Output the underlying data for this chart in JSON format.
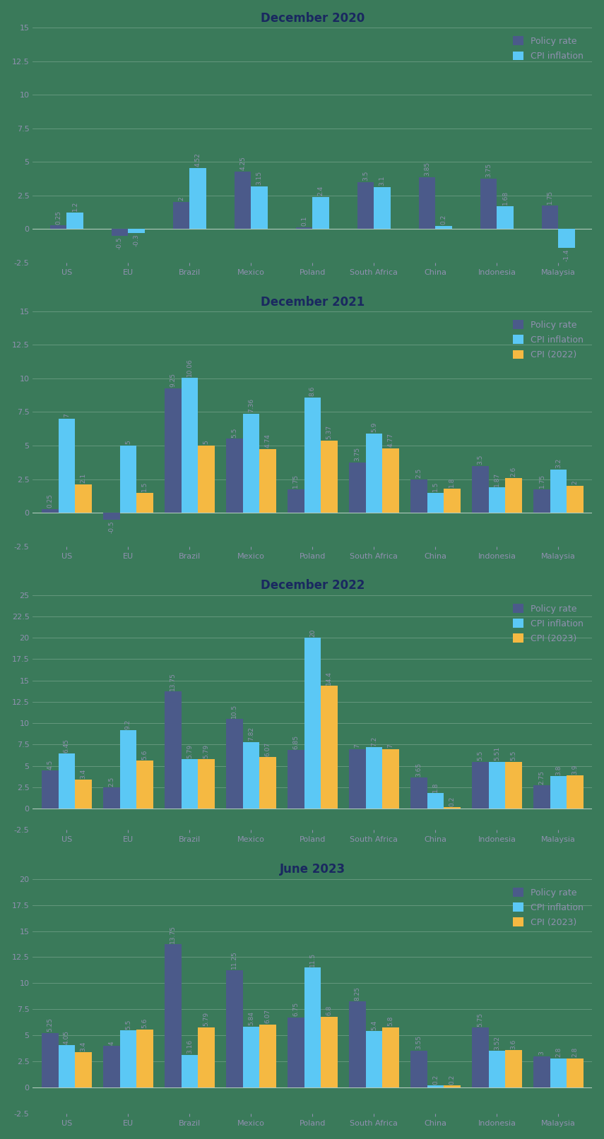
{
  "charts": [
    {
      "title": "December 2020",
      "categories": [
        "US",
        "EU",
        "Brazil",
        "Mexico",
        "Poland",
        "South Africa",
        "China",
        "Indonesia",
        "Malaysia"
      ],
      "series": [
        {
          "name": "Policy rate",
          "color": "#4b5a8a",
          "values": [
            0.25,
            -0.5,
            2.0,
            4.25,
            0.1,
            3.5,
            3.85,
            3.75,
            1.75
          ]
        },
        {
          "name": "CPI inflation",
          "color": "#5bc8f5",
          "values": [
            1.2,
            -0.3,
            4.52,
            3.15,
            2.4,
            3.1,
            0.2,
            1.68,
            -1.4
          ]
        }
      ],
      "ylim": [
        -2.5,
        15
      ],
      "yticks": [
        -2.5,
        0,
        2.5,
        5,
        7.5,
        10,
        12.5,
        15
      ],
      "n_series": 2
    },
    {
      "title": "December 2021",
      "categories": [
        "US",
        "EU",
        "Brazil",
        "Mexico",
        "Poland",
        "South Africa",
        "China",
        "Indonesia",
        "Malaysia"
      ],
      "series": [
        {
          "name": "Policy rate",
          "color": "#4b5a8a",
          "values": [
            0.25,
            -0.5,
            9.25,
            5.5,
            1.75,
            3.75,
            2.5,
            3.5,
            1.75
          ]
        },
        {
          "name": "CPI inflation",
          "color": "#5bc8f5",
          "values": [
            7.0,
            5.0,
            10.06,
            7.36,
            8.6,
            5.9,
            1.5,
            1.87,
            3.2
          ]
        },
        {
          "name": "CPI (2022)",
          "color": "#f5b942",
          "values": [
            2.1,
            1.5,
            5.0,
            4.74,
            5.37,
            4.77,
            1.8,
            2.6,
            2.0
          ]
        }
      ],
      "ylim": [
        -2.5,
        15
      ],
      "yticks": [
        -2.5,
        0,
        2.5,
        5,
        7.5,
        10,
        12.5,
        15
      ],
      "n_series": 3
    },
    {
      "title": "December 2022",
      "categories": [
        "US",
        "EU",
        "Brazil",
        "Mexico",
        "Poland",
        "South Africa",
        "China",
        "Indonesia",
        "Malaysia"
      ],
      "series": [
        {
          "name": "Policy rate",
          "color": "#4b5a8a",
          "values": [
            4.5,
            2.5,
            13.75,
            10.5,
            6.85,
            7.0,
            3.65,
            5.5,
            2.75
          ]
        },
        {
          "name": "CPI inflation",
          "color": "#5bc8f5",
          "values": [
            6.45,
            9.2,
            5.79,
            7.82,
            20.0,
            7.2,
            1.8,
            5.51,
            3.8
          ]
        },
        {
          "name": "CPI (2023)",
          "color": "#f5b942",
          "values": [
            3.4,
            5.6,
            5.79,
            6.07,
            14.4,
            7.0,
            0.2,
            5.5,
            3.9
          ]
        }
      ],
      "ylim": [
        -2.5,
        25
      ],
      "yticks": [
        -2.5,
        0,
        2.5,
        5,
        7.5,
        10,
        12.5,
        15,
        17.5,
        20,
        22.5,
        25
      ],
      "n_series": 3
    },
    {
      "title": "June 2023",
      "categories": [
        "US",
        "EU",
        "Brazil",
        "Mexico",
        "Poland",
        "South Africa",
        "China",
        "Indonesia",
        "Malaysia"
      ],
      "series": [
        {
          "name": "Policy rate",
          "color": "#4b5a8a",
          "values": [
            5.25,
            4.0,
            13.75,
            11.25,
            6.75,
            8.25,
            3.55,
            5.75,
            3.0
          ]
        },
        {
          "name": "CPI inflation",
          "color": "#5bc8f5",
          "values": [
            4.05,
            5.5,
            3.16,
            5.84,
            11.5,
            5.4,
            0.2,
            3.52,
            2.8
          ]
        },
        {
          "name": "CPI (2023)",
          "color": "#f5b942",
          "values": [
            3.4,
            5.6,
            5.79,
            6.07,
            6.8,
            5.8,
            0.2,
            3.6,
            2.8
          ]
        }
      ],
      "ylim": [
        -2.5,
        20
      ],
      "yticks": [
        -2.5,
        0,
        2.5,
        5,
        7.5,
        10,
        12.5,
        15,
        17.5,
        20
      ],
      "n_series": 3
    }
  ],
  "bg_color": "#3a7a5a",
  "title_color": "#1a2860",
  "axis_text_color": "#9090b0",
  "title_fontsize": 12,
  "tick_fontsize": 8,
  "bar_width": 0.27,
  "label_fontsize": 6.5,
  "label_color": "#9090b0"
}
